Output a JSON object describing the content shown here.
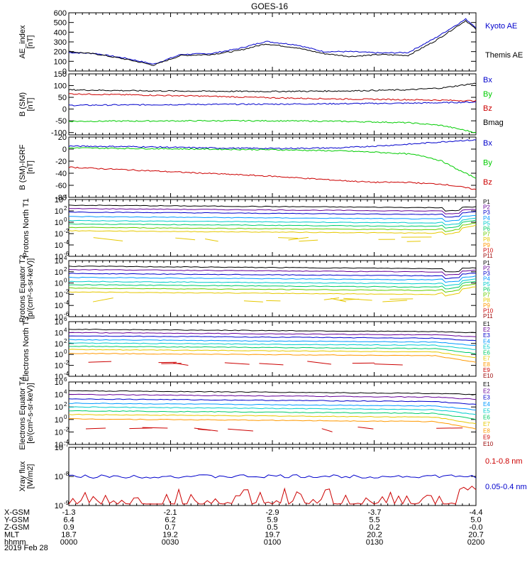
{
  "title": "GOES-16",
  "date": "2019 Feb 28",
  "ephemeris": {
    "rows": [
      {
        "label": "X-GSM",
        "values": [
          "-1.3",
          "-2.1",
          "-2.9",
          "-3.7",
          "-4.4"
        ]
      },
      {
        "label": "Y-GSM",
        "values": [
          "6.4",
          "6.2",
          "5.9",
          "5.5",
          "5.0"
        ]
      },
      {
        "label": "Z-GSM",
        "values": [
          "0.9",
          "0.7",
          "0.5",
          "0.2",
          "-0.0"
        ]
      },
      {
        "label": "MLT",
        "values": [
          "18.7",
          "19.2",
          "19.7",
          "20.2",
          "20.7"
        ]
      },
      {
        "label": "hhmm",
        "values": [
          "0000",
          "0030",
          "0100",
          "0130",
          "0200"
        ]
      }
    ]
  },
  "colors": {
    "blue": "#0000cc",
    "green": "#00cc00",
    "red": "#cc0000",
    "black": "#000000",
    "orange": "#ff9900",
    "yellow": "#e6c800"
  },
  "chart_data": [
    {
      "type": "line",
      "ylabel": "AE_index [nT]",
      "ylim": [
        0,
        600
      ],
      "yticks": [
        "0",
        "100",
        "200",
        "300",
        "400",
        "500",
        "600"
      ],
      "legend": [
        "Kyoto AE",
        "Themis AE"
      ],
      "x": [
        0,
        8,
        17,
        25,
        33,
        42,
        50,
        58,
        67,
        75,
        83,
        92,
        100,
        108,
        117,
        120
      ],
      "series": [
        {
          "name": "Kyoto AE",
          "color": "#0000cc",
          "values": [
            190,
            180,
            130,
            70,
            170,
            180,
            230,
            305,
            270,
            200,
            200,
            185,
            190,
            340,
            535,
            450
          ]
        },
        {
          "name": "Themis AE",
          "color": "#000000",
          "values": [
            200,
            175,
            120,
            60,
            160,
            170,
            210,
            280,
            240,
            180,
            150,
            170,
            160,
            310,
            520,
            430
          ]
        }
      ]
    },
    {
      "type": "line",
      "ylabel": "B (SM) [nT]",
      "ylim": [
        -110,
        150
      ],
      "yticks": [
        "-100",
        "-50",
        "0",
        "50",
        "100",
        "150"
      ],
      "legend": [
        "Bx",
        "By",
        "Bz",
        "Bmag"
      ],
      "x": [
        0,
        20,
        40,
        60,
        80,
        100,
        110,
        120
      ],
      "series": [
        {
          "name": "Bx",
          "color": "#0000cc",
          "values": [
            16,
            18,
            20,
            21,
            23,
            25,
            27,
            30
          ]
        },
        {
          "name": "By",
          "color": "#00cc00",
          "values": [
            -52,
            -51,
            -50,
            -50,
            -52,
            -58,
            -70,
            -100
          ]
        },
        {
          "name": "Bz",
          "color": "#cc0000",
          "values": [
            65,
            60,
            55,
            48,
            43,
            40,
            38,
            35
          ]
        },
        {
          "name": "Bmag",
          "color": "#000000",
          "values": [
            82,
            78,
            76,
            75,
            77,
            82,
            90,
            110
          ]
        }
      ]
    },
    {
      "type": "line",
      "ylabel": "B (SM)-IGRF [nT]",
      "ylim": [
        -80,
        20
      ],
      "yticks": [
        "-80",
        "-60",
        "-40",
        "-20",
        "0",
        "20"
      ],
      "legend": [
        "Bx",
        "By",
        "Bz"
      ],
      "x": [
        0,
        20,
        40,
        60,
        80,
        90,
        100,
        105,
        110,
        115,
        120
      ],
      "series": [
        {
          "name": "Bx",
          "color": "#0000cc",
          "values": [
            5,
            4,
            2,
            1,
            2,
            5,
            8,
            10,
            12,
            14,
            15
          ]
        },
        {
          "name": "By",
          "color": "#00cc00",
          "values": [
            2,
            1,
            0,
            -1,
            -3,
            -5,
            -8,
            -12,
            -20,
            -35,
            -48
          ]
        },
        {
          "name": "Bz",
          "color": "#cc0000",
          "values": [
            -30,
            -35,
            -40,
            -45,
            -52,
            -55,
            -55,
            -57,
            -58,
            -62,
            -67
          ]
        }
      ]
    },
    {
      "type": "line",
      "ylabel": "Protons North T1",
      "scale": "log",
      "ylim_exp": [
        -6,
        4
      ],
      "ytick_exps": [
        -6,
        -4,
        -2,
        0,
        2,
        4
      ],
      "legend": [
        "P1",
        "P2",
        "P3",
        "P4",
        "P5",
        "P6",
        "P7",
        "P8",
        "P9",
        "P10",
        "P11"
      ],
      "legend_colors": [
        "#000000",
        "#660099",
        "#0000cc",
        "#0099ff",
        "#00cccc",
        "#00cc66",
        "#66cc00",
        "#e6c800",
        "#ff9900",
        "#cc0000",
        "#990000"
      ],
      "base_exps": [
        3.0,
        2.4,
        1.8,
        1.0,
        0.3,
        -0.3,
        -0.9,
        -1.5
      ],
      "series_colors": [
        "#000000",
        "#660099",
        "#0000cc",
        "#0099ff",
        "#00cccc",
        "#00cc66",
        "#66cc00",
        "#e6c800"
      ]
    },
    {
      "type": "line",
      "ylabel": "Protons Equator T2 [p/(cm²-s-sr-keV)]",
      "scale": "log",
      "ylim_exp": [
        -6,
        4
      ],
      "ytick_exps": [
        -6,
        -4,
        -2,
        0,
        2,
        4
      ],
      "legend": [
        "P1",
        "P2",
        "P3",
        "P4",
        "P5",
        "P6",
        "P7",
        "P8",
        "P9",
        "P10",
        "P11"
      ],
      "legend_colors": [
        "#000000",
        "#660099",
        "#0000cc",
        "#0099ff",
        "#00cccc",
        "#00cc66",
        "#66cc00",
        "#e6c800",
        "#ff9900",
        "#cc0000",
        "#990000"
      ],
      "base_exps": [
        3.0,
        2.4,
        1.7,
        1.0,
        0.3,
        -0.3,
        -0.9,
        -1.6
      ],
      "series_colors": [
        "#000000",
        "#660099",
        "#0000cc",
        "#0099ff",
        "#00cccc",
        "#00cc66",
        "#66cc00",
        "#e6c800"
      ]
    },
    {
      "type": "line",
      "ylabel": "Electrons North T3",
      "scale": "log",
      "ylim_exp": [
        -4,
        6
      ],
      "ytick_exps": [
        -4,
        -2,
        0,
        2,
        4,
        6
      ],
      "legend": [
        "E1",
        "E2",
        "E3",
        "E4",
        "E5",
        "E6",
        "E7",
        "E8",
        "E9",
        "E10"
      ],
      "legend_colors": [
        "#000000",
        "#660099",
        "#0000cc",
        "#0099ff",
        "#00cccc",
        "#00cc66",
        "#e6c800",
        "#ff9900",
        "#cc0000",
        "#990000"
      ],
      "base_exps": [
        4.6,
        4.0,
        3.4,
        2.7,
        2.1,
        1.5,
        0.9,
        0.2
      ],
      "series_colors": [
        "#000000",
        "#660099",
        "#0000cc",
        "#0099ff",
        "#00cccc",
        "#00cc66",
        "#e6c800",
        "#ff9900"
      ]
    },
    {
      "type": "line",
      "ylabel": "Electrons Equator T4 [e/(cm²-s-sr-keV)]",
      "scale": "log",
      "ylim_exp": [
        -4,
        6
      ],
      "ytick_exps": [
        -4,
        -2,
        0,
        2,
        4,
        6
      ],
      "legend": [
        "E1",
        "E2",
        "E3",
        "E4",
        "E5",
        "E6",
        "E7",
        "E8",
        "E9",
        "E10"
      ],
      "legend_colors": [
        "#000000",
        "#660099",
        "#0000cc",
        "#0099ff",
        "#00cccc",
        "#00cc66",
        "#e6c800",
        "#ff9900",
        "#cc0000",
        "#990000"
      ],
      "base_exps": [
        4.6,
        4.0,
        3.3,
        2.6,
        2.0,
        1.4,
        0.8,
        0.1
      ],
      "series_colors": [
        "#000000",
        "#660099",
        "#0000cc",
        "#0099ff",
        "#00cccc",
        "#00cc66",
        "#e6c800",
        "#ff9900"
      ]
    },
    {
      "type": "line",
      "ylabel": "Xray flux [W/m2]",
      "scale": "log",
      "ylim_exp": [
        -9,
        -7
      ],
      "ytick_exps": [
        -9,
        -8,
        -7
      ],
      "legend": [
        "0.1-0.8 nm",
        "0.05-0.4 nm"
      ],
      "legend_colors": [
        "#cc0000",
        "#0000cc"
      ],
      "series_colors": [
        "#0000cc",
        "#cc0000"
      ]
    }
  ]
}
